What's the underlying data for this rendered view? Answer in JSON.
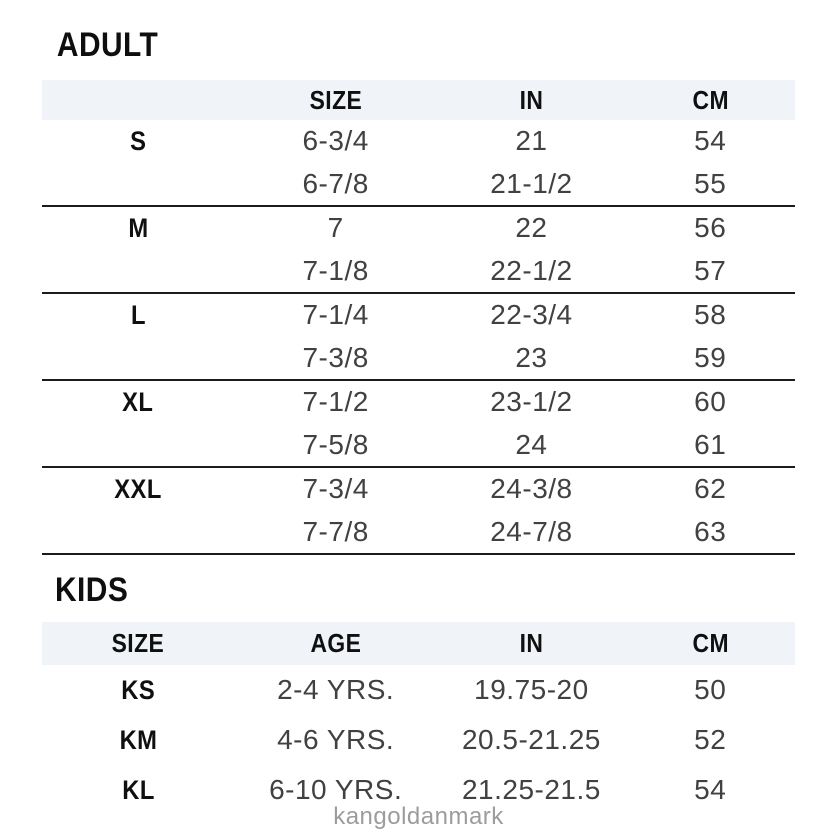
{
  "colors": {
    "header_bg": "#f0f3f8",
    "divider": "#1c1c1c",
    "heading_text": "#0f0f0f",
    "value_text": "#414141",
    "watermark_text": "#9c9c9c"
  },
  "adult": {
    "title": "ADULT",
    "columns": [
      "",
      "SIZE",
      "IN",
      "CM"
    ],
    "groups": [
      {
        "label": "S",
        "rows": [
          [
            "6-3/4",
            "21",
            "54"
          ],
          [
            "6-7/8",
            "21-1/2",
            "55"
          ]
        ]
      },
      {
        "label": "M",
        "rows": [
          [
            "7",
            "22",
            "56"
          ],
          [
            "7-1/8",
            "22-1/2",
            "57"
          ]
        ]
      },
      {
        "label": "L",
        "rows": [
          [
            "7-1/4",
            "22-3/4",
            "58"
          ],
          [
            "7-3/8",
            "23",
            "59"
          ]
        ]
      },
      {
        "label": "XL",
        "rows": [
          [
            "7-1/2",
            "23-1/2",
            "60"
          ],
          [
            "7-5/8",
            "24",
            "61"
          ]
        ]
      },
      {
        "label": "XXL",
        "rows": [
          [
            "7-3/4",
            "24-3/8",
            "62"
          ],
          [
            "7-7/8",
            "24-7/8",
            "63"
          ]
        ]
      }
    ]
  },
  "kids": {
    "title": "KIDS",
    "columns": [
      "SIZE",
      "AGE",
      "IN",
      "CM"
    ],
    "rows": [
      {
        "size": "KS",
        "age": "2-4 YRS.",
        "in": "19.75-20",
        "cm": "50"
      },
      {
        "size": "KM",
        "age": "4-6 YRS.",
        "in": "20.5-21.25",
        "cm": "52"
      },
      {
        "size": "KL",
        "age": "6-10 YRS.",
        "in": "21.25-21.5",
        "cm": "54"
      }
    ]
  },
  "watermark": "kangoldanmark"
}
